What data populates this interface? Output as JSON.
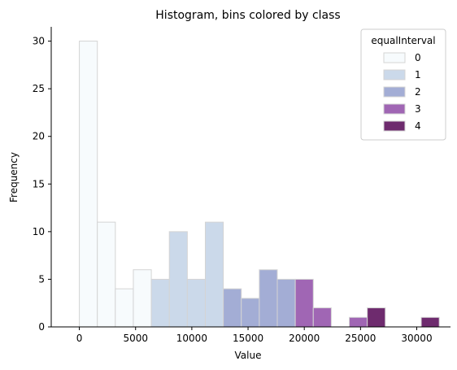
{
  "chart_data": {
    "type": "bar",
    "title": "Histogram, bins colored by class",
    "xlabel": "Value",
    "ylabel": "Frequency",
    "xlim": [
      -2500,
      33000
    ],
    "ylim": [
      0,
      31.5
    ],
    "xticks": [
      0,
      5000,
      10000,
      15000,
      20000,
      25000,
      30000
    ],
    "yticks": [
      0,
      5,
      10,
      15,
      20,
      25,
      30
    ],
    "bin_width": 1600,
    "bins": [
      {
        "x0": 0,
        "count": 30,
        "class": 0
      },
      {
        "x0": 1600,
        "count": 11,
        "class": 0
      },
      {
        "x0": 3200,
        "count": 4,
        "class": 0
      },
      {
        "x0": 4800,
        "count": 6,
        "class": 0
      },
      {
        "x0": 6400,
        "count": 5,
        "class": 1
      },
      {
        "x0": 8000,
        "count": 10,
        "class": 1
      },
      {
        "x0": 9600,
        "count": 5,
        "class": 1
      },
      {
        "x0": 11200,
        "count": 11,
        "class": 1
      },
      {
        "x0": 12800,
        "count": 4,
        "class": 2
      },
      {
        "x0": 14400,
        "count": 3,
        "class": 2
      },
      {
        "x0": 16000,
        "count": 6,
        "class": 2
      },
      {
        "x0": 17600,
        "count": 5,
        "class": 2
      },
      {
        "x0": 19200,
        "count": 5,
        "class": 3
      },
      {
        "x0": 20800,
        "count": 2,
        "class": 3
      },
      {
        "x0": 22400,
        "count": 0,
        "class": 3
      },
      {
        "x0": 24000,
        "count": 1,
        "class": 3
      },
      {
        "x0": 25600,
        "count": 2,
        "class": 4
      },
      {
        "x0": 27200,
        "count": 0,
        "class": 4
      },
      {
        "x0": 28800,
        "count": 0,
        "class": 4
      },
      {
        "x0": 30400,
        "count": 1,
        "class": 4
      }
    ],
    "legend": {
      "title": "equalInterval",
      "placement": "top-right",
      "entries": [
        {
          "label": "0",
          "color": "#f7fbfd"
        },
        {
          "label": "1",
          "color": "#cbd9ea"
        },
        {
          "label": "2",
          "color": "#a3add5"
        },
        {
          "label": "3",
          "color": "#a066b4"
        },
        {
          "label": "4",
          "color": "#6e2b6e"
        }
      ]
    },
    "bar_edge_color": "#d4d4d4",
    "grid": false
  }
}
